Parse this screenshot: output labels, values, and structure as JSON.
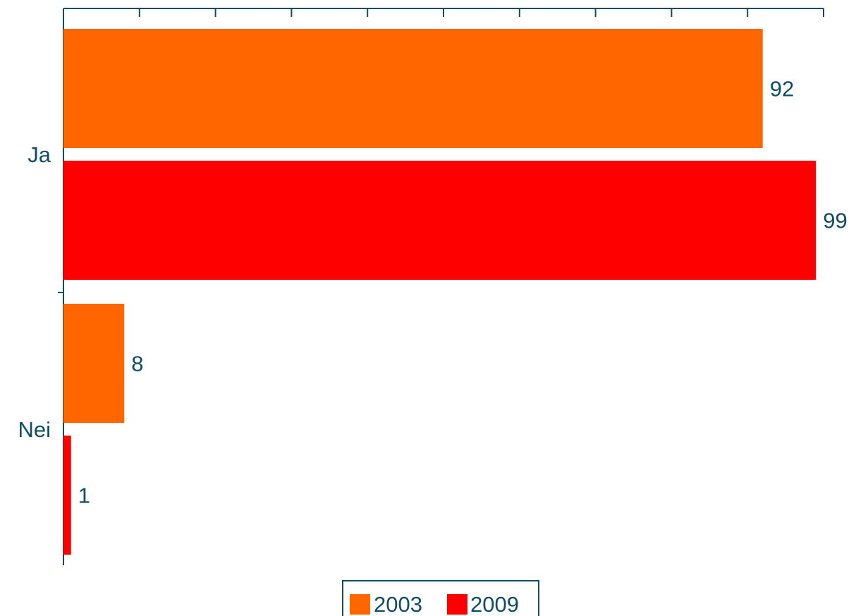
{
  "chart_data": {
    "type": "bar",
    "orientation": "horizontal",
    "categories": [
      "Ja",
      "Nei"
    ],
    "series": [
      {
        "name": "2003",
        "values": [
          92,
          8
        ],
        "color": "#ff6600"
      },
      {
        "name": "2009",
        "values": [
          99,
          1
        ],
        "color": "#ff0000"
      }
    ],
    "xlim": [
      0,
      100
    ],
    "x_tick_count": 10,
    "x_tick_labels_shown": false,
    "grid": false,
    "legend": {
      "placement": "bottom-center",
      "entries": [
        "2003",
        "2009"
      ]
    },
    "title": "",
    "xlabel": "",
    "ylabel": "",
    "axis_color": "#0f4d63"
  }
}
